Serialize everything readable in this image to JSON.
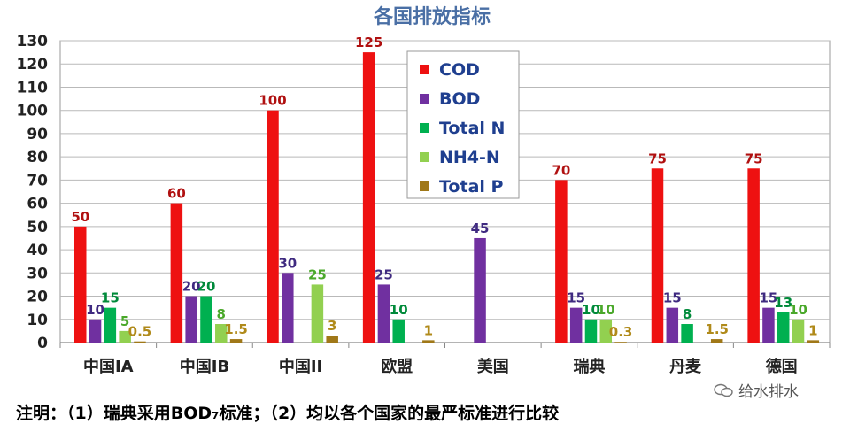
{
  "chart_data": {
    "type": "bar",
    "title": "各国排放指标",
    "categories": [
      "中国IA",
      "中国IB",
      "中国II",
      "欧盟",
      "美国",
      "瑞典",
      "丹麦",
      "德国"
    ],
    "ylim": [
      0,
      130
    ],
    "yticks": [
      0,
      10,
      20,
      30,
      40,
      50,
      60,
      70,
      80,
      90,
      100,
      110,
      120,
      130
    ],
    "grid": true,
    "legend_position": "top-center",
    "series": [
      {
        "name": "COD",
        "color": "#ee1111",
        "label_color": "#b01010",
        "values": [
          50,
          60,
          100,
          125,
          null,
          70,
          75,
          75
        ],
        "labels": [
          "50",
          "60",
          "100",
          "125",
          "",
          "70",
          "75",
          "75"
        ]
      },
      {
        "name": "BOD",
        "color": "#7030a0",
        "label_color": "#3f2a80",
        "values": [
          10,
          20,
          30,
          25,
          45,
          15,
          15,
          15
        ],
        "labels": [
          "10",
          "20",
          "30",
          "25",
          "45",
          "15",
          "15",
          "15"
        ]
      },
      {
        "name": "Total N",
        "color": "#00b050",
        "label_color": "#008a3a",
        "values": [
          15,
          20,
          null,
          10,
          null,
          10,
          8,
          13
        ],
        "labels": [
          "15",
          "20",
          "",
          "10",
          "",
          "10",
          "8",
          "13"
        ]
      },
      {
        "name": "NH4-N",
        "color": "#92d050",
        "label_color": "#4aa82a",
        "values": [
          5,
          8,
          25,
          null,
          null,
          10,
          null,
          10
        ],
        "labels": [
          "5",
          "8",
          "25",
          "",
          "",
          "10",
          "",
          "10"
        ]
      },
      {
        "name": "Total P",
        "color": "#a07818",
        "label_color": "#b08a1a",
        "values": [
          0.5,
          1.5,
          3,
          1,
          null,
          0.3,
          1.5,
          1
        ],
        "labels": [
          "0.5",
          "1.5",
          "3",
          "1",
          "",
          "0.3",
          "1.5",
          "1"
        ]
      }
    ]
  },
  "footnote": "注明：（1）瑞典采用BOD₇标准；（2）均以各个国家的最严标准进行比较",
  "watermark": "给水排水"
}
